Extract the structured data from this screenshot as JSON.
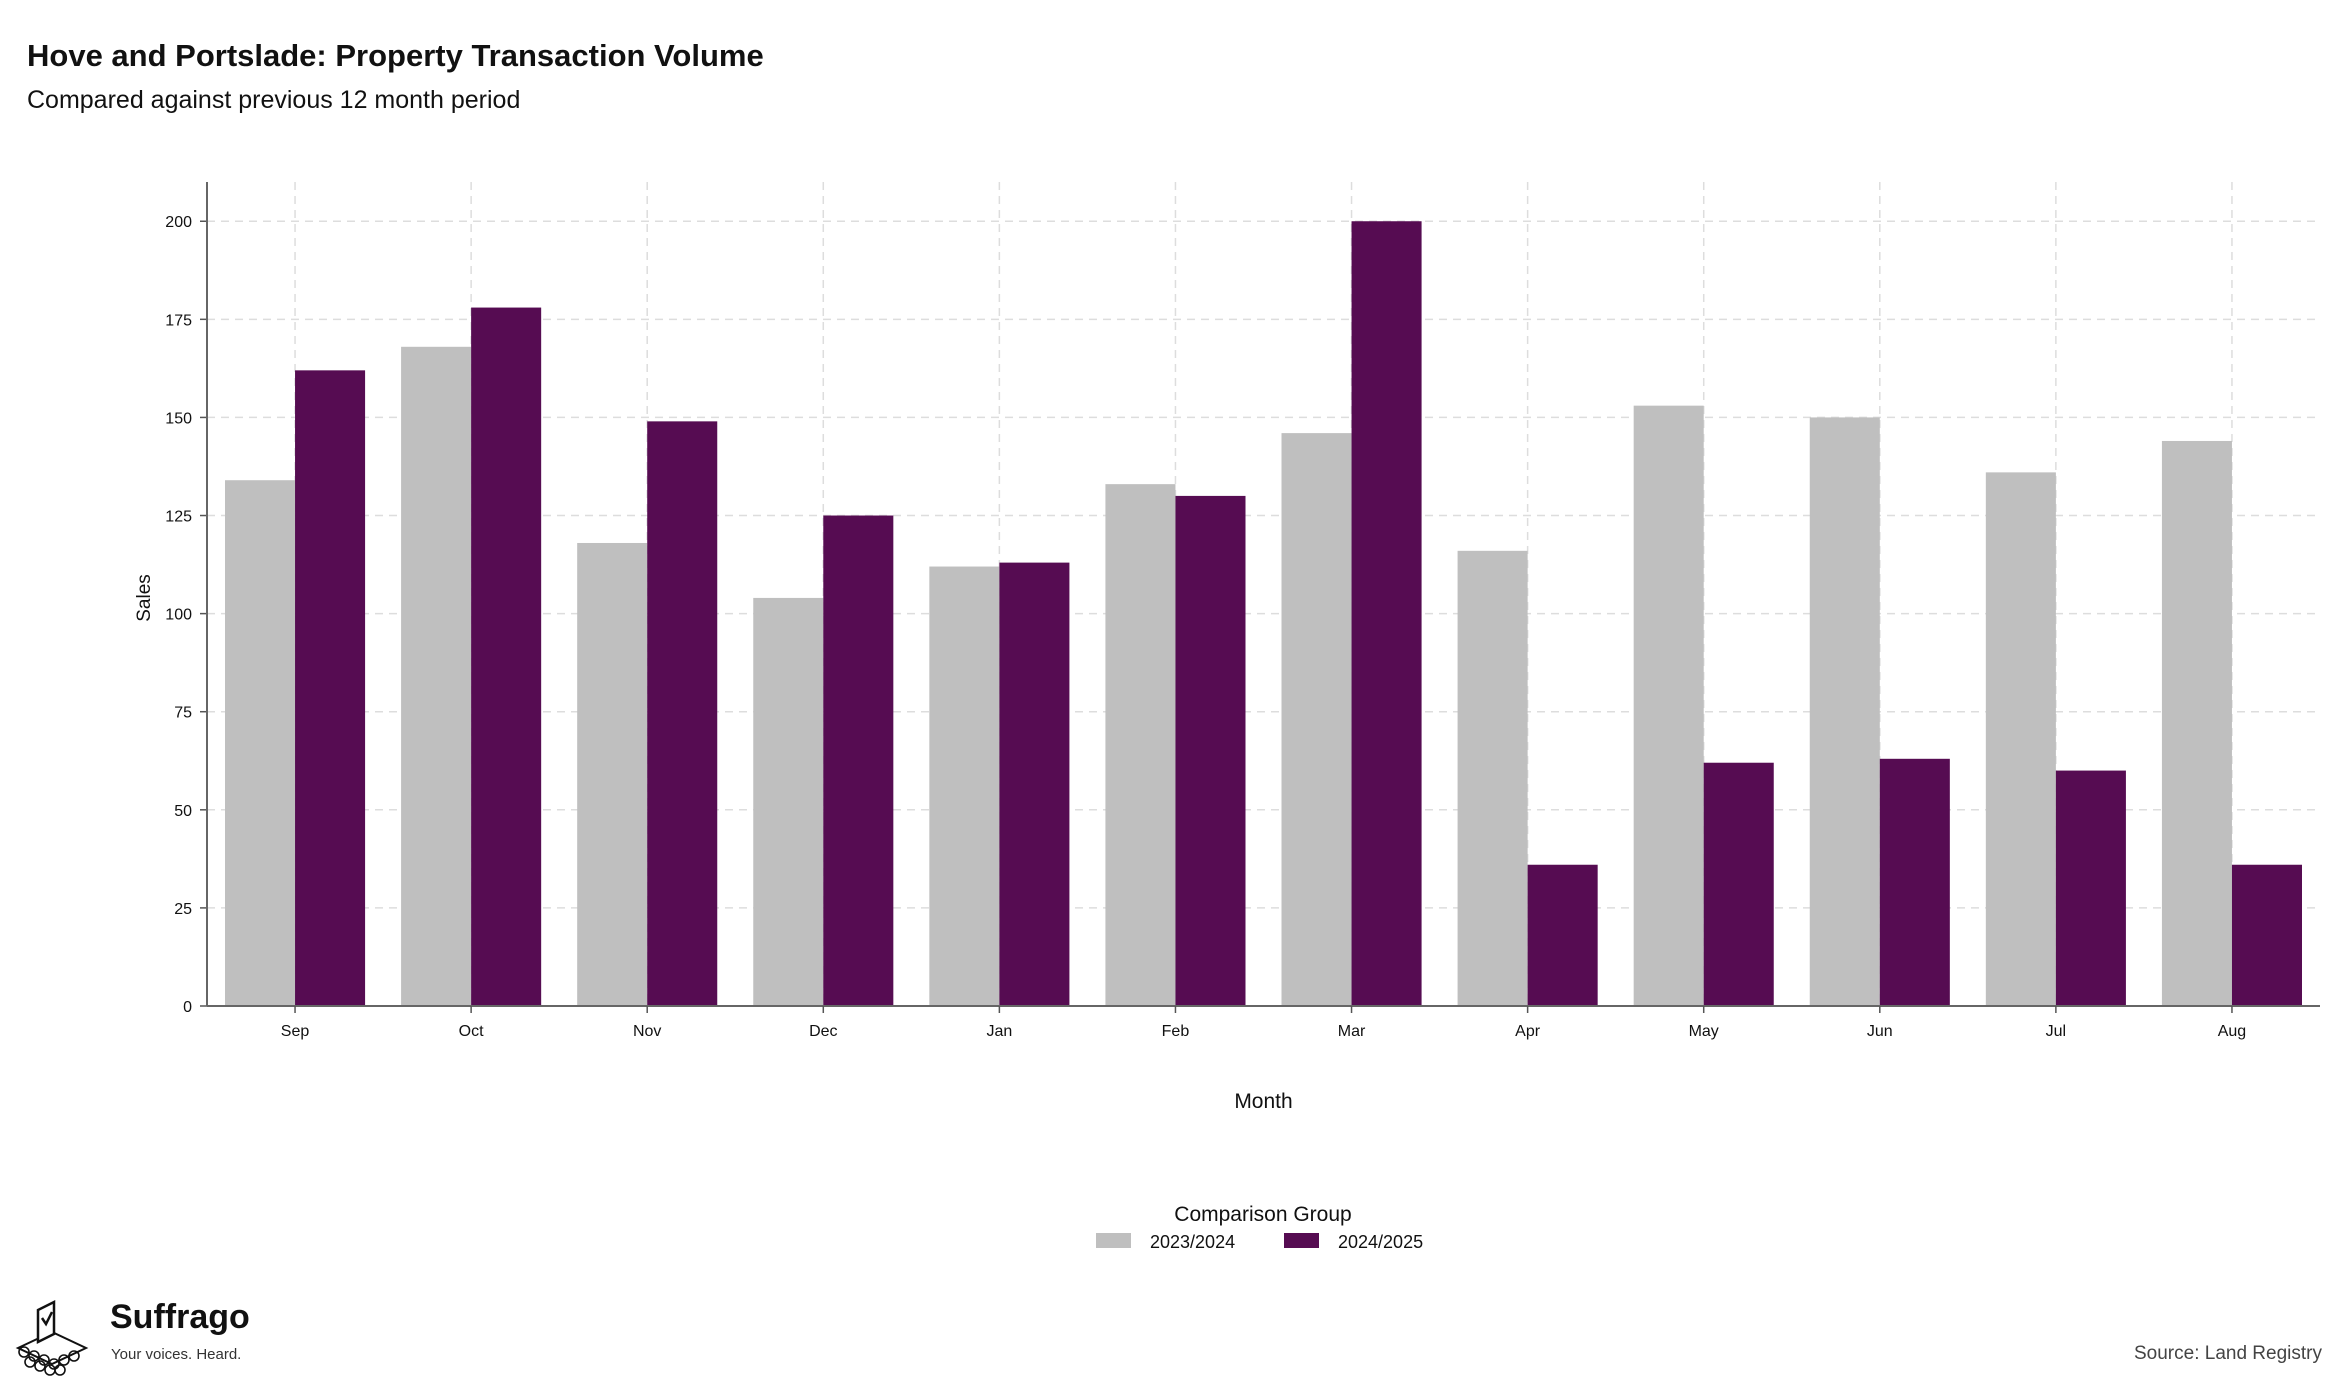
{
  "title": "Hove and Portslade: Property Transaction Volume",
  "subtitle": "Compared against previous 12 month period",
  "source": "Source: Land Registry",
  "logo": {
    "name": "Suffrago",
    "tagline": "Your voices. Heard."
  },
  "colors": {
    "series_2023_2024": "#bfbfbf",
    "series_2024_2025": "#560c52",
    "grid": "#dddddd"
  },
  "chart_data": {
    "type": "bar",
    "xlabel": "Month",
    "ylabel": "Sales",
    "ylim": [
      0,
      210
    ],
    "yticks": [
      0,
      25,
      50,
      75,
      100,
      125,
      150,
      175,
      200
    ],
    "grid": true,
    "legend": {
      "title": "Comparison Group",
      "position": "bottom"
    },
    "categories": [
      "Sep",
      "Oct",
      "Nov",
      "Dec",
      "Jan",
      "Feb",
      "Mar",
      "Apr",
      "May",
      "Jun",
      "Jul",
      "Aug"
    ],
    "series": [
      {
        "name": "2023/2024",
        "values": [
          134,
          168,
          118,
          104,
          112,
          133,
          146,
          116,
          153,
          150,
          136,
          144
        ]
      },
      {
        "name": "2024/2025",
        "values": [
          162,
          178,
          149,
          125,
          113,
          130,
          200,
          36,
          62,
          63,
          60,
          36
        ]
      }
    ]
  }
}
